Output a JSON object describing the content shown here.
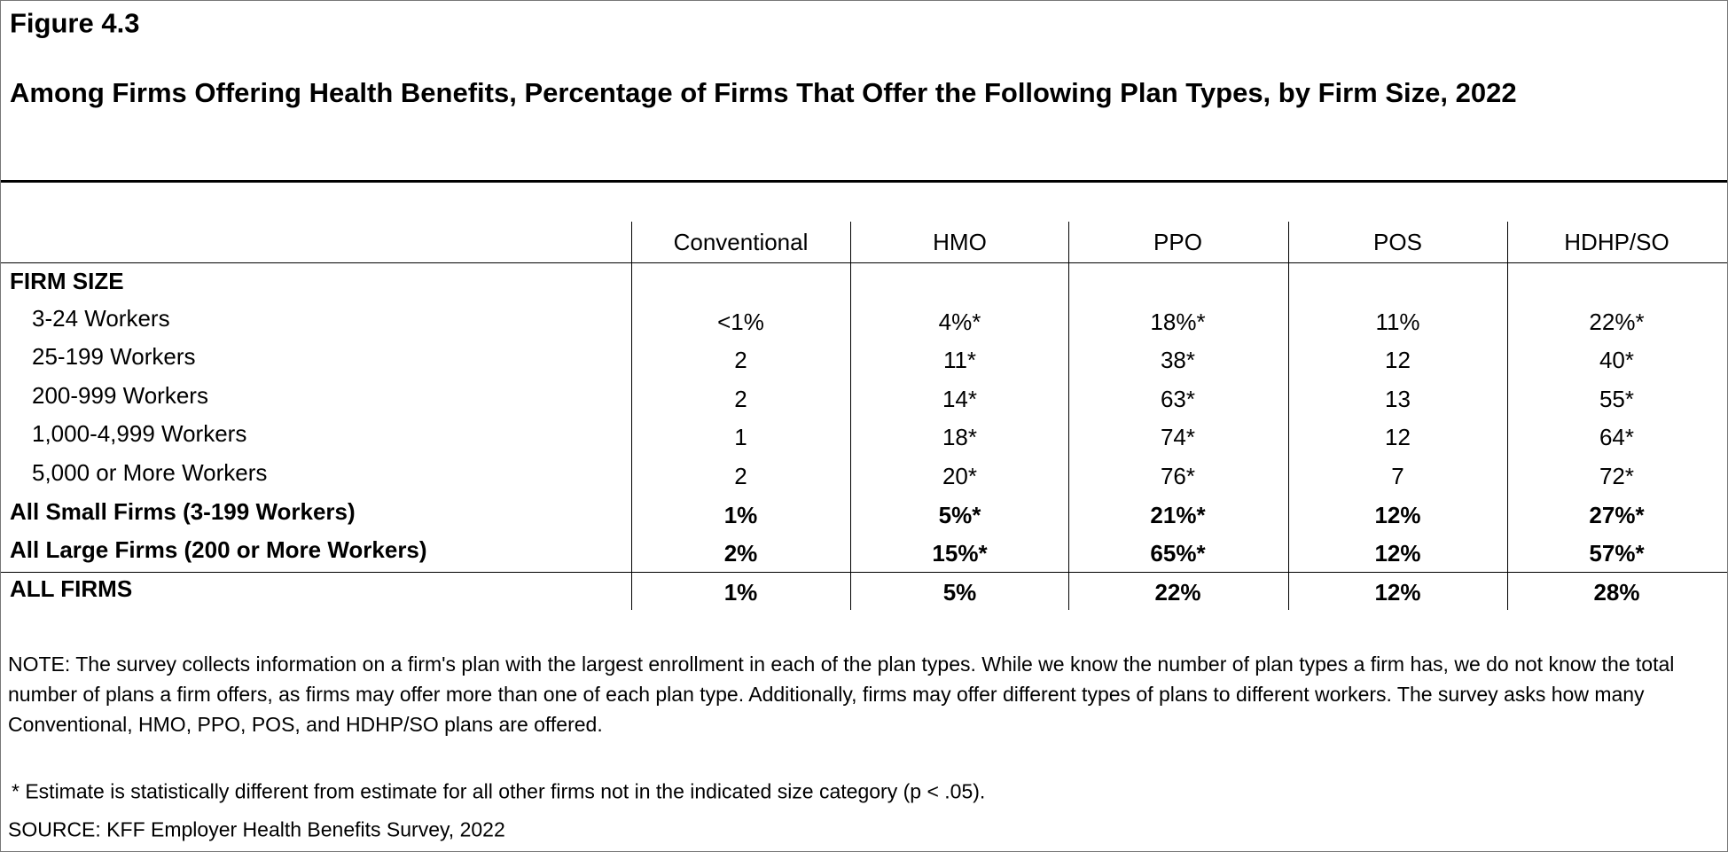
{
  "header": {
    "figure": "Figure 4.3",
    "title": "Among Firms Offering Health Benefits, Percentage of Firms That Offer the Following Plan Types, by Firm Size, 2022"
  },
  "table": {
    "columns": [
      "Conventional",
      "HMO",
      "PPO",
      "POS",
      "HDHP/SO"
    ],
    "section_header": "FIRM SIZE",
    "size_rows": [
      {
        "label": "3-24 Workers",
        "cells": [
          "<1%",
          "4%*",
          "18%*",
          "11%",
          "22%*"
        ]
      },
      {
        "label": "25-199 Workers",
        "cells": [
          "2",
          "11*",
          "38*",
          "12",
          "40*"
        ]
      },
      {
        "label": "200-999 Workers",
        "cells": [
          "2",
          "14*",
          "63*",
          "13",
          "55*"
        ]
      },
      {
        "label": "1,000-4,999 Workers",
        "cells": [
          "1",
          "18*",
          "74*",
          "12",
          "64*"
        ]
      },
      {
        "label": "5,000 or More Workers",
        "cells": [
          "2",
          "20*",
          "76*",
          "7",
          "72*"
        ]
      }
    ],
    "summary_rows": [
      {
        "label": "All Small Firms (3-199 Workers)",
        "cells": [
          "1%",
          "5%*",
          "21%*",
          "12%",
          "27%*"
        ]
      },
      {
        "label": "All Large Firms (200 or More Workers)",
        "cells": [
          "2%",
          "15%*",
          "65%*",
          "12%",
          "57%*"
        ]
      }
    ],
    "total_row": {
      "label": "ALL FIRMS",
      "cells": [
        "1%",
        "5%",
        "22%",
        "12%",
        "28%"
      ]
    }
  },
  "notes": {
    "note": "NOTE: The survey collects information on a firm's plan with the largest enrollment in each of the plan types. While we know the number of plan types a firm has, we do not know the total number of plans a firm offers, as firms may offer more than one of each plan type. Additionally, firms may offer different types of plans to different workers. The survey asks how many Conventional, HMO, PPO, POS, and HDHP/SO plans are offered.",
    "footnote": " * Estimate is statistically different from estimate for all other firms not in the indicated size category (p < .05).",
    "source": "SOURCE: KFF Employer Health Benefits Survey, 2022"
  }
}
